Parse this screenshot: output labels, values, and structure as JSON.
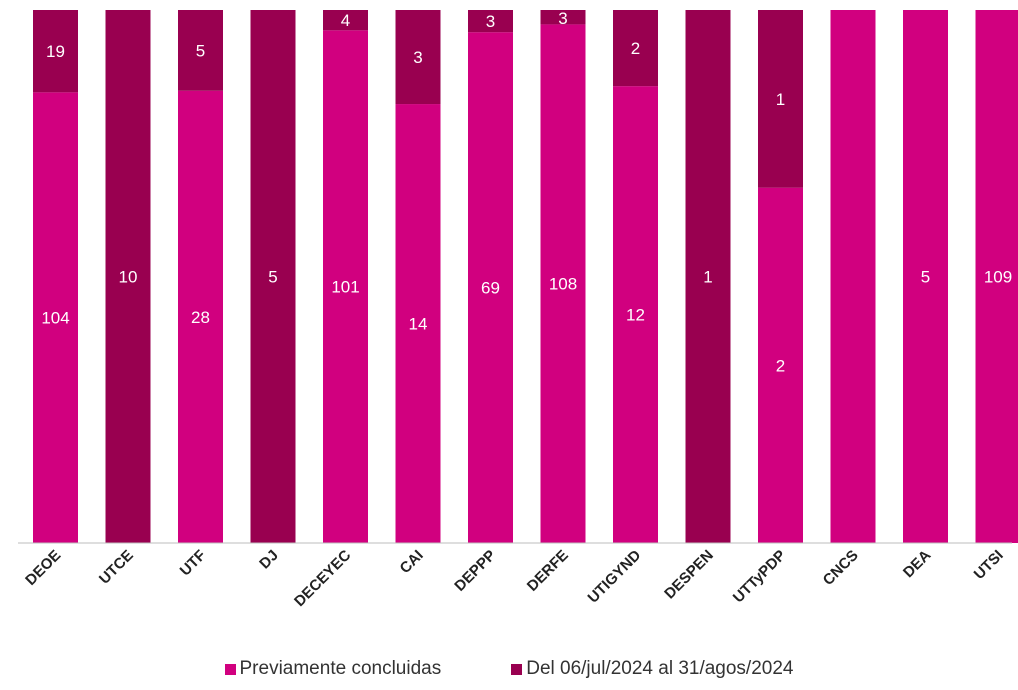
{
  "chart_data": {
    "type": "bar",
    "stacked": true,
    "normalized": true,
    "categories": [
      "DEOE",
      "UTCE",
      "UTF",
      "DJ",
      "DECEYEC",
      "CAI",
      "DEPPP",
      "DERFE",
      "UTIGYND",
      "DESPEN",
      "UTTyPDP",
      "CNCS",
      "DEA",
      "UTSI"
    ],
    "series": [
      {
        "name": "Previamente concluidas",
        "color": "#d1007f",
        "values": [
          104,
          null,
          28,
          null,
          101,
          14,
          69,
          108,
          12,
          null,
          2,
          null,
          5,
          109
        ]
      },
      {
        "name": "Del 06/jul/2024 al 31/agos/2024",
        "color": "#990050",
        "values": [
          19,
          10,
          5,
          5,
          4,
          3,
          3,
          3,
          2,
          1,
          1,
          null,
          null,
          null
        ]
      }
    ],
    "legend_position": "bottom",
    "grid": false
  }
}
